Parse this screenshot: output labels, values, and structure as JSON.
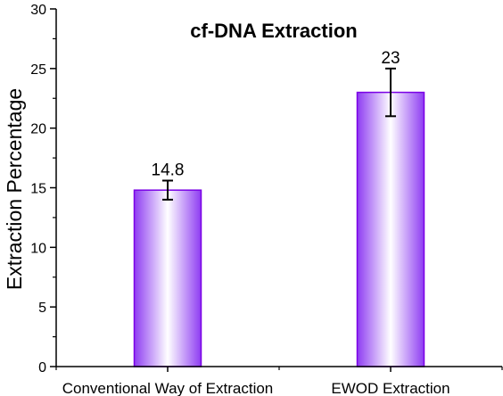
{
  "chart_data": {
    "type": "bar",
    "title": "cf-DNA Extraction",
    "xlabel": "",
    "ylabel": "Extraction Percentage",
    "categories": [
      "Conventional Way of Extraction",
      "EWOD Extraction"
    ],
    "values": [
      14.8,
      23
    ],
    "value_labels": [
      "14.8",
      "23"
    ],
    "errors": [
      0.8,
      2.0
    ],
    "ylim": [
      0,
      30
    ],
    "yticks": [
      0,
      5,
      10,
      15,
      20,
      25,
      30
    ],
    "ytick_labels": [
      "0",
      "5",
      "10",
      "15",
      "20",
      "25",
      "30"
    ],
    "grid": false,
    "legend": "none",
    "colors": {
      "bar_edge": "#7a00e6",
      "bar_gradient_dark": "#8e3cf2",
      "bar_gradient_light": "#ffffff",
      "axis": "#000000"
    }
  }
}
